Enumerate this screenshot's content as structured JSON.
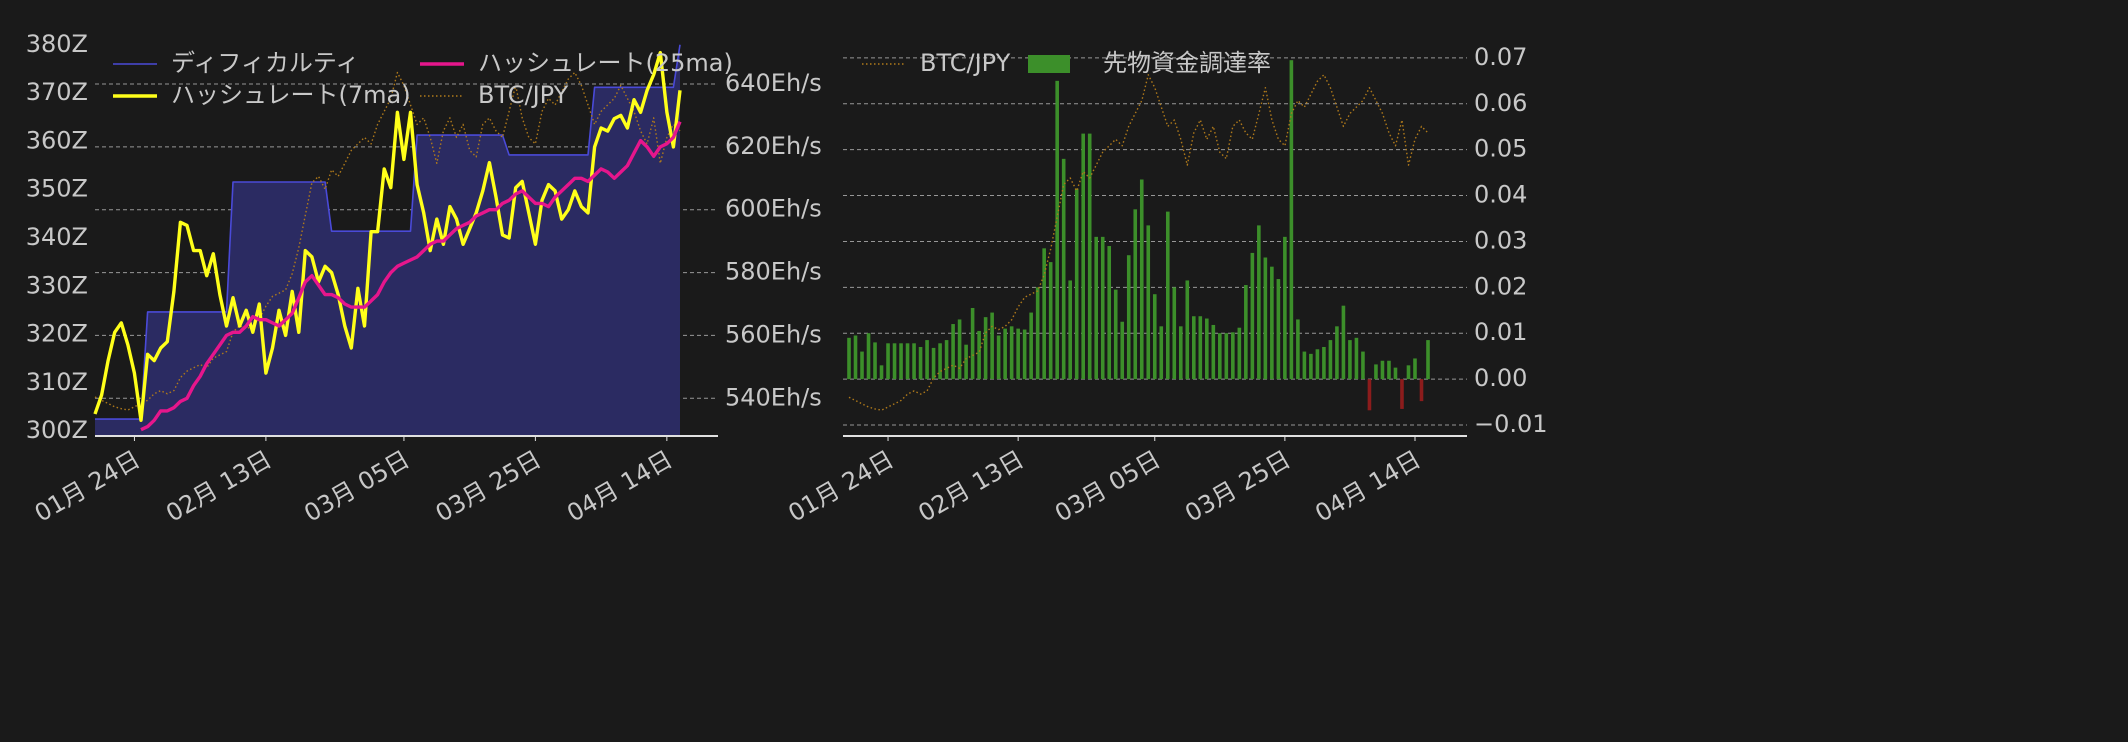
{
  "chart_data": [
    {
      "type": "line",
      "x": [
        "01月 18日",
        "01月 19日",
        "01月 20日",
        "01月 21日",
        "01月 22日",
        "01月 23日",
        "01月 24日",
        "01月 25日",
        "01月 26日",
        "01月 27日",
        "01月 28日",
        "01月 29日",
        "01月 30日",
        "01月 31日",
        "02月 01日",
        "02月 02日",
        "02月 03日",
        "02月 04日",
        "02月 05日",
        "02月 06日",
        "02月 07日",
        "02月 08日",
        "02月 09日",
        "02月 10日",
        "02月 11日",
        "02月 12日",
        "02月 13日",
        "02月 14日",
        "02月 15日",
        "02月 16日",
        "02月 17日",
        "02月 18日",
        "02月 19日",
        "02月 20日",
        "02月 21日",
        "02月 22日",
        "02月 23日",
        "02月 24日",
        "02月 25日",
        "02月 26日",
        "02月 27日",
        "02月 28日",
        "02月 29日",
        "03月 01日",
        "03月 02日",
        "03月 03日",
        "03月 04日",
        "03月 05日",
        "03月 06日",
        "03月 07日",
        "03月 08日",
        "03月 09日",
        "03月 10日",
        "03月 11日",
        "03月 12日",
        "03月 13日",
        "03月 14日",
        "03月 15日",
        "03月 16日",
        "03月 17日",
        "03月 18日",
        "03月 19日",
        "03月 20日",
        "03月 21日",
        "03月 22日",
        "03月 23日",
        "03月 24日",
        "03月 25日",
        "03月 26日",
        "03月 27日",
        "03月 28日",
        "03月 29日",
        "03月 30日",
        "03月 31日",
        "04月 01日",
        "04月 02日",
        "04月 03日",
        "04月 04日",
        "04月 05日",
        "04月 06日",
        "04月 07日",
        "04月 08日",
        "04月 09日",
        "04月 10日",
        "04月 11日",
        "04月 12日",
        "04月 13日",
        "04月 14日",
        "04月 15日",
        "04月 16日"
      ],
      "xticks": [
        "01月 24日",
        "02月 13日",
        "03月 05日",
        "03月 25日",
        "04月 14日"
      ],
      "ylim": [
        299,
        381
      ],
      "yticks": [
        {
          "value": 300,
          "label": "300Z"
        },
        {
          "value": 310,
          "label": "310Z"
        },
        {
          "value": 320,
          "label": "320Z"
        },
        {
          "value": 330,
          "label": "330Z"
        },
        {
          "value": 340,
          "label": "340Z"
        },
        {
          "value": 350,
          "label": "350Z"
        },
        {
          "value": 360,
          "label": "360Z"
        },
        {
          "value": 370,
          "label": "370Z"
        },
        {
          "value": 380,
          "label": "380Z"
        }
      ],
      "y2lim": [
        528,
        654
      ],
      "y2ticks": [
        {
          "value": 540,
          "label": "540Eh/s"
        },
        {
          "value": 560,
          "label": "560Eh/s"
        },
        {
          "value": 580,
          "label": "580Eh/s"
        },
        {
          "value": 600,
          "label": "600Eh/s"
        },
        {
          "value": 620,
          "label": "620Eh/s"
        },
        {
          "value": 640,
          "label": "640Eh/s"
        }
      ],
      "y3lim": [
        5.4,
        11.5
      ],
      "grid": "y2",
      "legend": "upper left",
      "legend_columns": 2,
      "series": [
        {
          "name": "ディフィカルティ",
          "type": "area",
          "color": "#4a4ad8",
          "fill": "#2b2b62",
          "axis": "y",
          "values": [
            302.5,
            302.5,
            302.5,
            302.5,
            302.5,
            302.5,
            302.5,
            302.5,
            324.7,
            324.7,
            324.7,
            324.7,
            324.7,
            324.7,
            324.7,
            324.7,
            324.7,
            324.7,
            324.7,
            324.7,
            324.7,
            351.6,
            351.6,
            351.6,
            351.6,
            351.6,
            351.6,
            351.6,
            351.6,
            351.6,
            351.6,
            351.6,
            351.6,
            351.6,
            351.6,
            351.6,
            341.4,
            341.4,
            341.4,
            341.4,
            341.4,
            341.4,
            341.4,
            341.4,
            341.4,
            341.4,
            341.4,
            341.4,
            341.4,
            361.3,
            361.3,
            361.3,
            361.3,
            361.3,
            361.3,
            361.3,
            361.3,
            361.3,
            361.3,
            361.3,
            361.3,
            361.3,
            361.3,
            357.2,
            357.2,
            357.2,
            357.2,
            357.2,
            357.2,
            357.2,
            357.2,
            357.2,
            357.2,
            357.2,
            357.2,
            357.2,
            371.2,
            371.2,
            371.2,
            371.2,
            371.2,
            371.2,
            371.2,
            371.2,
            371.2,
            371.2,
            371.2,
            371.2,
            371.2,
            380
          ]
        },
        {
          "name": "ハッシュレート(7ma)",
          "type": "line",
          "color": "#ffff1a",
          "axis": "y2",
          "values": [
            535,
            541,
            552,
            561,
            564,
            557,
            548,
            533,
            554,
            552,
            556,
            558,
            574,
            596,
            595,
            587,
            587,
            579,
            586,
            573,
            563,
            572,
            563,
            568,
            561,
            570,
            548,
            556,
            568,
            560,
            574,
            561,
            587,
            585,
            577,
            582,
            580,
            573,
            563,
            556,
            575,
            563,
            593,
            593,
            613,
            607,
            631,
            616,
            631,
            608,
            599,
            587,
            597,
            589,
            601,
            597,
            589,
            594,
            599,
            606,
            615,
            604,
            592,
            591,
            607,
            609,
            599,
            589,
            603,
            608,
            606,
            597,
            600,
            606,
            601,
            599,
            620,
            626,
            625,
            629,
            630,
            626,
            635,
            631,
            638,
            643,
            650,
            631,
            620,
            638
          ]
        },
        {
          "name": "ハッシュレート(25ma)",
          "type": "line",
          "color": "#e6168c",
          "axis": "y2",
          "values": [
            null,
            null,
            null,
            null,
            null,
            null,
            null,
            530,
            531,
            533,
            536,
            536,
            537,
            539,
            540,
            544,
            547,
            551,
            554,
            557,
            560,
            561,
            561,
            563,
            566,
            565,
            565,
            564,
            563,
            565,
            567,
            572,
            577,
            579,
            576,
            573,
            573,
            572,
            570,
            569,
            569,
            569,
            571,
            573,
            577,
            580,
            582,
            583,
            584,
            585,
            587,
            589,
            590,
            590,
            592,
            594,
            595,
            596,
            598,
            599,
            600,
            600,
            602,
            603,
            605,
            606,
            604,
            602,
            602,
            601,
            604,
            606,
            608,
            610,
            610,
            609,
            611,
            613,
            612,
            610,
            612,
            614,
            618,
            622,
            620,
            617,
            620,
            621,
            623,
            628
          ]
        },
        {
          "name": "BTC/JPY",
          "type": "line",
          "style": "dotted",
          "color": "#b07a1a",
          "axis": "y3",
          "values": [
            6.0,
            5.95,
            5.9,
            5.85,
            5.82,
            5.8,
            5.85,
            5.9,
            5.95,
            6.05,
            6.1,
            6.05,
            6.1,
            6.3,
            6.4,
            6.45,
            6.5,
            6.45,
            6.6,
            6.65,
            6.7,
            7.0,
            7.1,
            7.05,
            7.1,
            7.2,
            7.4,
            7.55,
            7.6,
            7.65,
            7.9,
            8.3,
            8.8,
            9.3,
            9.4,
            9.2,
            9.5,
            9.4,
            9.6,
            9.8,
            9.9,
            10.0,
            9.9,
            10.2,
            10.4,
            10.6,
            11.0,
            10.8,
            10.5,
            10.2,
            10.3,
            10.0,
            9.6,
            10.1,
            10.3,
            10.0,
            10.2,
            9.8,
            9.7,
            10.2,
            10.3,
            10.1,
            10.0,
            10.4,
            10.8,
            10.3,
            10.0,
            9.9,
            10.4,
            10.6,
            10.5,
            10.7,
            10.9,
            11.0,
            10.8,
            10.5,
            10.2,
            10.4,
            10.5,
            10.6,
            10.8,
            10.6,
            10.4,
            10.1,
            9.9,
            10.3,
            9.6,
            10.0,
            10.2,
            10.1
          ]
        }
      ]
    },
    {
      "type": "bar",
      "x": [
        "01月 18日",
        "01月 19日",
        "01月 20日",
        "01月 21日",
        "01月 22日",
        "01月 23日",
        "01月 24日",
        "01月 25日",
        "01月 26日",
        "01月 27日",
        "01月 28日",
        "01月 29日",
        "01月 30日",
        "01月 31日",
        "02月 01日",
        "02月 02日",
        "02月 03日",
        "02月 04日",
        "02月 05日",
        "02月 06日",
        "02月 07日",
        "02月 08日",
        "02月 09日",
        "02月 10日",
        "02月 11日",
        "02月 12日",
        "02月 13日",
        "02月 14日",
        "02月 15日",
        "02月 16日",
        "02月 17日",
        "02月 18日",
        "02月 19日",
        "02月 20日",
        "02月 21日",
        "02月 22日",
        "02月 23日",
        "02月 24日",
        "02月 25日",
        "02月 26日",
        "02月 27日",
        "02月 28日",
        "02月 29日",
        "03月 01日",
        "03月 02日",
        "03月 03日",
        "03月 04日",
        "03月 05日",
        "03月 06日",
        "03月 07日",
        "03月 08日",
        "03月 09日",
        "03月 10日",
        "03月 11日",
        "03月 12日",
        "03月 13日",
        "03月 14日",
        "03月 15日",
        "03月 16日",
        "03月 17日",
        "03月 18日",
        "03月 19日",
        "03月 20日",
        "03月 21日",
        "03月 22日",
        "03月 23日",
        "03月 24日",
        "03月 25日",
        "03月 26日",
        "03月 27日",
        "03月 28日",
        "03月 29日",
        "03月 30日",
        "03月 31日",
        "04月 01日",
        "04月 02日",
        "04月 03日",
        "04月 04日",
        "04月 05日",
        "04月 06日",
        "04月 07日",
        "04月 08日",
        "04月 09日",
        "04月 10日",
        "04月 11日",
        "04月 12日",
        "04月 13日",
        "04月 14日",
        "04月 15日",
        "04月 16日"
      ],
      "xticks": [
        "01月 24日",
        "02月 13日",
        "03月 05日",
        "03月 25日",
        "04月 14日"
      ],
      "ylim": [
        -0.0124,
        0.0739
      ],
      "yaxis_position": "right",
      "yticks": [
        {
          "value": -0.01,
          "label": "−0.01"
        },
        {
          "value": 0,
          "label": "0.00"
        },
        0.01,
        0.02,
        0.03,
        0.04,
        0.05,
        0.06,
        0.07
      ],
      "y3lim": [
        5.4,
        11.54
      ],
      "grid": "y",
      "legend": "upper left",
      "legend_columns": 2,
      "series": [
        {
          "name": "BTC/JPY",
          "type": "line",
          "style": "dotted",
          "color": "#b07a1a",
          "axis": "y3",
          "values": [
            6.0,
            5.95,
            5.9,
            5.85,
            5.82,
            5.8,
            5.85,
            5.9,
            5.95,
            6.05,
            6.1,
            6.05,
            6.1,
            6.3,
            6.4,
            6.45,
            6.5,
            6.45,
            6.6,
            6.65,
            6.7,
            7.0,
            7.1,
            7.05,
            7.1,
            7.2,
            7.4,
            7.55,
            7.6,
            7.65,
            7.9,
            8.3,
            8.8,
            9.3,
            9.4,
            9.2,
            9.5,
            9.4,
            9.6,
            9.8,
            9.9,
            10.0,
            9.9,
            10.2,
            10.4,
            10.6,
            11.0,
            10.8,
            10.5,
            10.2,
            10.3,
            10.0,
            9.6,
            10.1,
            10.3,
            10.0,
            10.2,
            9.8,
            9.7,
            10.2,
            10.3,
            10.1,
            10.0,
            10.4,
            10.8,
            10.3,
            10.0,
            9.9,
            10.4,
            10.6,
            10.5,
            10.7,
            10.9,
            11.0,
            10.8,
            10.5,
            10.2,
            10.4,
            10.5,
            10.6,
            10.8,
            10.6,
            10.4,
            10.1,
            9.9,
            10.3,
            9.6,
            10.0,
            10.2,
            10.1
          ]
        },
        {
          "name": "先物資金調達率",
          "type": "bar",
          "color": "#3c8f2a",
          "negative_color": "#8c1c1c",
          "axis": "y",
          "values": [
            0.009,
            0.0095,
            0.006,
            0.01,
            0.008,
            0.003,
            0.0078,
            0.0078,
            0.0078,
            0.0078,
            0.0078,
            0.007,
            0.0085,
            0.0068,
            0.0078,
            0.0085,
            0.012,
            0.013,
            0.0075,
            0.0155,
            0.0105,
            0.0135,
            0.0145,
            0.0095,
            0.011,
            0.0115,
            0.011,
            0.0108,
            0.0145,
            0.02,
            0.0285,
            0.0255,
            0.065,
            0.048,
            0.0215,
            0.0415,
            0.0535,
            0.0535,
            0.031,
            0.031,
            0.029,
            0.0195,
            0.0125,
            0.027,
            0.037,
            0.0435,
            0.0335,
            0.0185,
            0.0115,
            0.0365,
            0.02,
            0.0115,
            0.0215,
            0.0137,
            0.0137,
            0.0132,
            0.0118,
            0.01,
            0.01,
            0.0102,
            0.0112,
            0.0205,
            0.0275,
            0.0335,
            0.0265,
            0.0245,
            0.0218,
            0.031,
            0.0695,
            0.013,
            0.006,
            0.0055,
            0.0065,
            0.007,
            0.0085,
            0.0115,
            0.016,
            0.0085,
            0.009,
            0.006,
            -0.0068,
            0.0032,
            0.004,
            0.004,
            0.0025,
            -0.0065,
            0.003,
            0.0045,
            -0.0048,
            0.0085
          ]
        }
      ]
    }
  ]
}
